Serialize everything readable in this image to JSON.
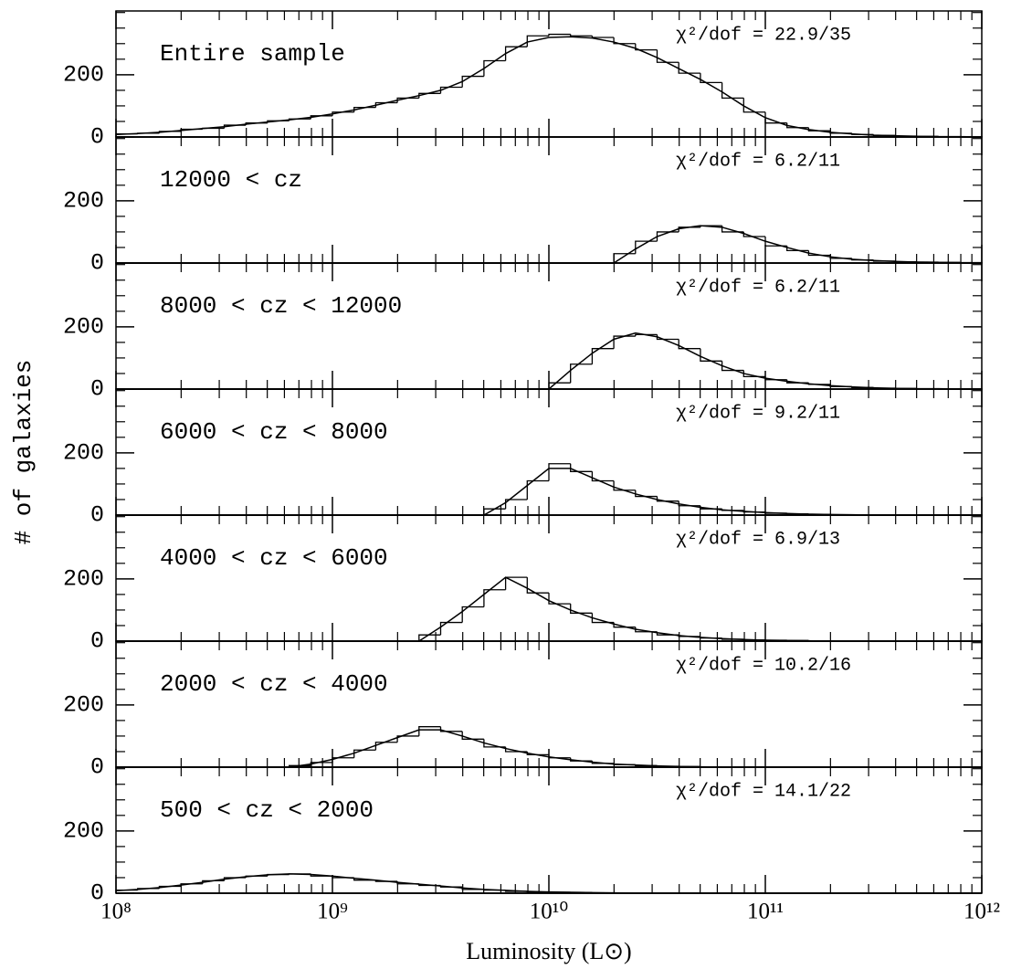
{
  "chart_data": {
    "type": "histogram",
    "xscale": "log",
    "xlabel": "Luminosity (L⊙)",
    "ylabel": "# of galaxies",
    "color": "#000000",
    "xlim": [
      100000000.0,
      1000000000000.0
    ],
    "xticks": [
      {
        "value": 100000000.0,
        "label": "10⁸"
      },
      {
        "value": 1000000000.0,
        "label": "10⁹"
      },
      {
        "value": 10000000000.0,
        "label": "10¹⁰"
      },
      {
        "value": 100000000000.0,
        "label": "10¹¹"
      },
      {
        "value": 1000000000000.0,
        "label": "10¹²"
      }
    ],
    "xminorticks": [
      200000000.0,
      300000000.0,
      400000000.0,
      500000000.0,
      600000000.0,
      700000000.0,
      800000000.0,
      900000000.0,
      2000000000.0,
      3000000000.0,
      4000000000.0,
      5000000000.0,
      6000000000.0,
      7000000000.0,
      8000000000.0,
      9000000000.0,
      20000000000.0,
      30000000000.0,
      40000000000.0,
      50000000000.0,
      60000000000.0,
      70000000000.0,
      80000000000.0,
      90000000000.0,
      200000000000.0,
      300000000000.0,
      400000000000.0,
      500000000000.0,
      600000000000.0,
      700000000000.0,
      800000000000.0,
      900000000000.0
    ],
    "bins": [
      100000000.0,
      125900000.0,
      158500000.0,
      199500000.0,
      251200000.0,
      316200000.0,
      398100000.0,
      501200000.0,
      631000000.0,
      794300000.0,
      1000000000.0,
      1259000000.0,
      1585000000.0,
      1995000000.0,
      2512000000.0,
      3162000000.0,
      3981000000.0,
      5012000000.0,
      6310000000.0,
      7943000000.0,
      10000000000.0,
      12590000000.0,
      15850000000.0,
      19950000000.0,
      25120000000.0,
      31620000000.0,
      39810000000.0,
      50120000000.0,
      63100000000.0,
      79430000000.0,
      100000000000.0,
      125900000000.0,
      158500000000.0,
      199500000000.0,
      251200000000.0,
      316200000000.0,
      398100000000.0,
      501200000000.0,
      631000000000.0,
      794300000000.0,
      1000000000000.0
    ],
    "panels": [
      {
        "label": "Entire sample",
        "annotation": "χ²/dof = 22.9/35",
        "ylim": [
          0,
          405
        ],
        "yticks": [
          0,
          200
        ],
        "yminorticks": [
          50,
          100,
          150,
          250,
          300,
          350,
          400
        ],
        "counts": [
          10,
          12,
          18,
          25,
          28,
          38,
          45,
          52,
          58,
          68,
          80,
          95,
          110,
          125,
          140,
          160,
          195,
          245,
          290,
          325,
          330,
          325,
          320,
          300,
          280,
          240,
          205,
          175,
          125,
          80,
          45,
          30,
          20,
          12,
          8,
          5,
          3,
          2,
          1,
          1
        ],
        "fit": [
          8,
          11,
          15,
          21,
          27,
          33,
          41,
          48,
          55,
          63,
          74,
          87,
          102,
          118,
          133,
          150,
          178,
          220,
          268,
          305,
          320,
          322,
          318,
          305,
          285,
          255,
          220,
          185,
          145,
          100,
          62,
          37,
          24,
          15,
          10,
          6,
          4,
          2,
          1,
          1,
          0
        ]
      },
      {
        "label": "12000 < cz",
        "annotation": "χ²/dof = 6.2/11",
        "ylim": [
          0,
          405
        ],
        "yticks": [
          0,
          200
        ],
        "yminorticks": [
          50,
          100,
          150,
          250,
          300,
          350,
          400
        ],
        "counts": [
          0,
          0,
          0,
          0,
          0,
          0,
          0,
          0,
          0,
          0,
          0,
          0,
          0,
          0,
          0,
          0,
          0,
          0,
          0,
          0,
          0,
          0,
          0,
          30,
          70,
          100,
          115,
          120,
          100,
          85,
          55,
          40,
          25,
          15,
          10,
          6,
          4,
          3,
          2,
          1
        ],
        "fit": [
          0,
          0,
          0,
          0,
          0,
          0,
          0,
          0,
          0,
          0,
          0,
          0,
          0,
          0,
          0,
          0,
          0,
          0,
          0,
          0,
          0,
          0,
          0,
          0,
          45,
          85,
          110,
          120,
          115,
          95,
          70,
          50,
          32,
          20,
          12,
          8,
          5,
          3,
          2,
          1,
          1
        ]
      },
      {
        "label": "8000 < cz < 12000",
        "annotation": "χ²/dof = 6.2/11",
        "ylim": [
          0,
          405
        ],
        "yticks": [
          0,
          200
        ],
        "yminorticks": [
          50,
          100,
          150,
          250,
          300,
          350,
          400
        ],
        "counts": [
          0,
          0,
          0,
          0,
          0,
          0,
          0,
          0,
          0,
          0,
          0,
          0,
          0,
          0,
          0,
          0,
          0,
          0,
          0,
          0,
          20,
          80,
          130,
          170,
          175,
          160,
          130,
          90,
          60,
          40,
          30,
          20,
          15,
          8,
          5,
          3,
          2,
          1,
          0,
          0
        ],
        "fit": [
          0,
          0,
          0,
          0,
          0,
          0,
          0,
          0,
          0,
          0,
          0,
          0,
          0,
          0,
          0,
          0,
          0,
          0,
          0,
          0,
          0,
          60,
          115,
          160,
          180,
          168,
          140,
          105,
          75,
          50,
          35,
          25,
          17,
          11,
          7,
          4,
          2,
          1,
          1,
          0,
          0
        ]
      },
      {
        "label": "6000 < cz < 8000",
        "annotation": "χ²/dof = 9.2/11",
        "ylim": [
          0,
          405
        ],
        "yticks": [
          0,
          200
        ],
        "yminorticks": [
          50,
          100,
          150,
          250,
          300,
          350,
          400
        ],
        "counts": [
          0,
          0,
          0,
          0,
          0,
          0,
          0,
          0,
          0,
          0,
          0,
          0,
          0,
          0,
          0,
          0,
          0,
          20,
          50,
          110,
          165,
          140,
          110,
          80,
          60,
          45,
          30,
          20,
          15,
          10,
          6,
          4,
          2,
          1,
          0,
          0,
          0,
          0,
          0,
          0
        ],
        "fit": [
          0,
          0,
          0,
          0,
          0,
          0,
          0,
          0,
          0,
          0,
          0,
          0,
          0,
          0,
          0,
          0,
          0,
          0,
          40,
          95,
          150,
          150,
          120,
          90,
          68,
          50,
          36,
          25,
          17,
          12,
          8,
          5,
          3,
          2,
          1,
          0,
          0,
          0,
          0,
          0,
          0
        ]
      },
      {
        "label": "4000 < cz < 6000",
        "annotation": "χ²/dof = 6.9/13",
        "ylim": [
          0,
          405
        ],
        "yticks": [
          0,
          200
        ],
        "yminorticks": [
          50,
          100,
          150,
          250,
          300,
          350,
          400
        ],
        "counts": [
          0,
          0,
          0,
          0,
          0,
          0,
          0,
          0,
          0,
          0,
          0,
          0,
          0,
          0,
          20,
          60,
          110,
          165,
          205,
          155,
          120,
          90,
          60,
          45,
          30,
          20,
          15,
          10,
          6,
          4,
          3,
          2,
          1,
          0,
          0,
          0,
          0,
          0,
          0,
          0
        ],
        "fit": [
          0,
          0,
          0,
          0,
          0,
          0,
          0,
          0,
          0,
          0,
          0,
          0,
          0,
          0,
          0,
          45,
          95,
          150,
          205,
          170,
          130,
          100,
          75,
          55,
          38,
          27,
          18,
          12,
          8,
          5,
          3,
          2,
          1,
          0,
          0,
          0,
          0,
          0,
          0,
          0,
          0
        ]
      },
      {
        "label": "2000 < cz < 4000",
        "annotation": "χ²/dof = 10.2/16",
        "ylim": [
          0,
          405
        ],
        "yticks": [
          0,
          200
        ],
        "yminorticks": [
          50,
          100,
          150,
          250,
          300,
          350,
          400
        ],
        "counts": [
          0,
          0,
          0,
          0,
          0,
          0,
          0,
          0,
          5,
          15,
          30,
          55,
          80,
          100,
          130,
          115,
          90,
          65,
          50,
          40,
          30,
          20,
          12,
          8,
          5,
          3,
          2,
          1,
          0,
          0,
          0,
          0,
          0,
          0,
          0,
          0,
          0,
          0,
          0,
          0
        ],
        "fit": [
          0,
          0,
          0,
          0,
          0,
          0,
          0,
          0,
          0,
          10,
          25,
          45,
          70,
          95,
          120,
          120,
          100,
          78,
          60,
          45,
          33,
          24,
          16,
          10,
          7,
          4,
          2,
          1,
          0,
          0,
          0,
          0,
          0,
          0,
          0,
          0,
          0,
          0,
          0,
          0,
          0
        ]
      },
      {
        "label": "500 < cz < 2000",
        "annotation": "χ²/dof = 14.1/22",
        "ylim": [
          0,
          405
        ],
        "yticks": [
          0,
          200
        ],
        "yminorticks": [
          50,
          100,
          150,
          250,
          300,
          350,
          400
        ],
        "counts": [
          10,
          15,
          22,
          30,
          40,
          50,
          55,
          60,
          62,
          55,
          50,
          42,
          38,
          30,
          25,
          20,
          12,
          10,
          6,
          4,
          3,
          2,
          1,
          0,
          0,
          0,
          0,
          0,
          0,
          0,
          0,
          0,
          0,
          0,
          0,
          0,
          0,
          0,
          0,
          0
        ],
        "fit": [
          8,
          12,
          18,
          26,
          35,
          45,
          53,
          59,
          62,
          60,
          55,
          48,
          42,
          35,
          29,
          23,
          17,
          12,
          9,
          6,
          4,
          3,
          2,
          1,
          0,
          0,
          0,
          0,
          0,
          0,
          0,
          0,
          0,
          0,
          0,
          0,
          0,
          0,
          0,
          0,
          0
        ]
      }
    ]
  }
}
